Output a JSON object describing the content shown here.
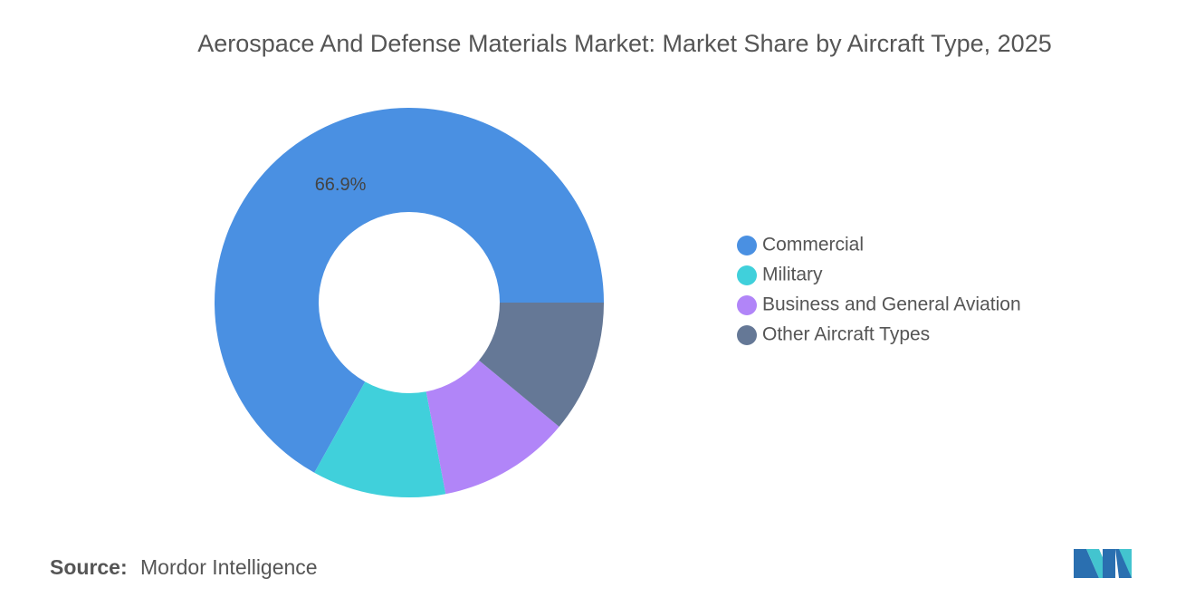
{
  "chart_data": {
    "type": "donut",
    "title": "Aerospace And Defense Materials Market: Market Share by Aircraft Type, 2025",
    "categories": [
      "Commercial",
      "Military",
      "Business and General Aviation",
      "Other Aircraft Types"
    ],
    "values": [
      66.9,
      11.1,
      11.0,
      11.0
    ],
    "value_labels": [
      "66.9%",
      null,
      null,
      null
    ],
    "colors": [
      "#4a90e2",
      "#40d0db",
      "#b185f8",
      "#657896"
    ],
    "legend_position": "right",
    "source_label": "Source:",
    "source": "Mordor Intelligence"
  }
}
